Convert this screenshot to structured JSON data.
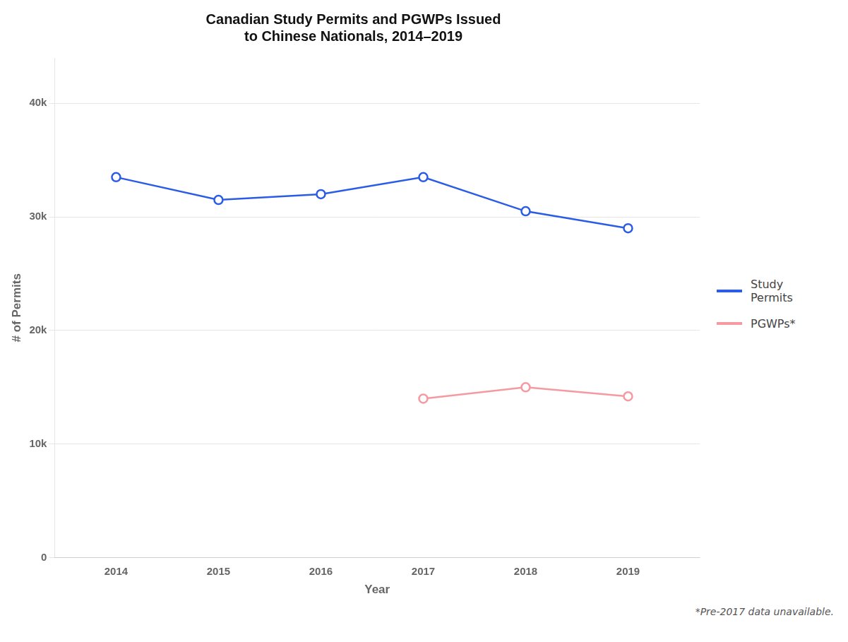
{
  "chart_data": {
    "type": "line",
    "title": "Canadian Study Permits and PGWPs Issued\nto Chinese Nationals, 2014–2019",
    "x_label": "Year",
    "y_label": "# of Permits",
    "x": [
      2014,
      2015,
      2016,
      2017,
      2018,
      2019
    ],
    "series": [
      {
        "name": "Study\nPermits",
        "color": "#2B5CE6",
        "values": [
          33500,
          31500,
          32000,
          33500,
          30500,
          29000
        ]
      },
      {
        "name": "PGWPs*",
        "color": "#F49AA0",
        "values": [
          null,
          null,
          null,
          14000,
          15000,
          14200
        ]
      }
    ],
    "xlim": [
      2013.4,
      2019.7
    ],
    "xticks": [
      2014,
      2015,
      2016,
      2017,
      2018,
      2019
    ],
    "ylim": [
      0,
      44000
    ],
    "yticks": [
      0,
      {
        "value": 10000,
        "label": "10k"
      },
      {
        "value": 20000,
        "label": "20k"
      },
      {
        "value": 30000,
        "label": "30k"
      },
      {
        "value": 40000,
        "label": "40k"
      }
    ],
    "grid": true,
    "legend": "right",
    "marker": "circle",
    "annotation": "*Pre-2017 data unavailable."
  }
}
